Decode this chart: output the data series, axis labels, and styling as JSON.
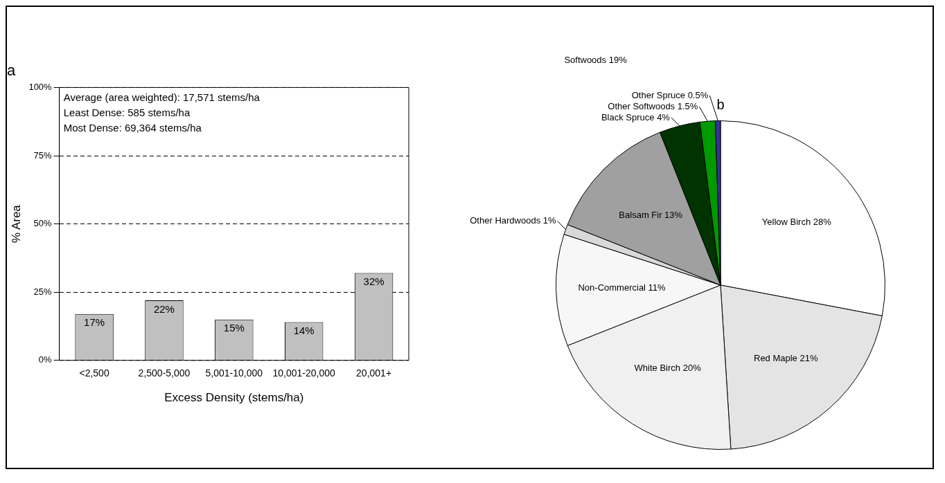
{
  "chart_data": [
    {
      "type": "bar",
      "title": "a",
      "xlabel": "Excess Density (stems/ha)",
      "ylabel": "% Area",
      "categories": [
        "<2,500",
        "2,500-5,000",
        "5,001-10,000",
        "10,001-20,000",
        "20,001+"
      ],
      "values": [
        17,
        22,
        15,
        14,
        32
      ],
      "value_labels": [
        "17%",
        "22%",
        "15%",
        "14%",
        "32%"
      ],
      "color": "#c0c0c0",
      "ylim": [
        0,
        100
      ],
      "yticks": [
        {
          "value": 0,
          "label": "0%"
        },
        {
          "value": 25,
          "label": "25%"
        },
        {
          "value": 50,
          "label": "50%"
        },
        {
          "value": 75,
          "label": "75%"
        },
        {
          "value": 100,
          "label": "100%"
        }
      ],
      "grid": "y",
      "legend": false,
      "annotations": [
        "Average (area weighted): 17,571 stems/ha",
        "Least Dense: 585 stems/ha",
        "Most Dense: 69,364 stems/ha"
      ]
    },
    {
      "type": "pie",
      "title": "b",
      "categories": [
        "Yellow Birch",
        "Red Maple",
        "White Birch",
        "Non-Commercial",
        "Other Hardwoods",
        "Balsam Fir",
        "Black Spruce",
        "Other Softwoods",
        "Other Spruce"
      ],
      "values": [
        28,
        21,
        20,
        11,
        1,
        13,
        4,
        1.5,
        0.5
      ],
      "value_labels": [
        "28%",
        "21%",
        "20%",
        "11%",
        "1%",
        "13%",
        "4%",
        "1.5%",
        "0.5%"
      ],
      "colors": [
        "#ffffff",
        "#e4e4e4",
        "#f0f0f0",
        "#f7f7f7",
        "#d8d8d8",
        "#a0a0a0",
        "#003300",
        "#009900",
        "#333399"
      ],
      "legend": false,
      "annotations": [
        "Softwoods 19%"
      ]
    }
  ]
}
